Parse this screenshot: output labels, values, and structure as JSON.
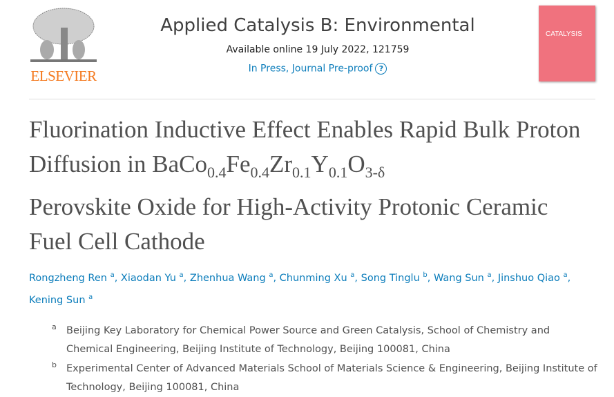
{
  "publisher": {
    "logo_text": "ELSEVIER",
    "brand_color": "#f47a20"
  },
  "journal": {
    "title": "Applied Catalysis B: Environmental",
    "available": "Available online 19 July 2022, 121759",
    "status": "In Press, Journal Pre-proof",
    "help_icon": "question-circle-icon",
    "cover_text": "CATALYSIS"
  },
  "article": {
    "title_parts": [
      "Fluorination Inductive Effect Enables Rapid Bulk Proton Diffusion in BaCo",
      "0.4",
      "Fe",
      "0.4",
      "Zr",
      "0.1",
      "Y",
      "0.1",
      "O",
      "3-δ",
      "Perovskite Oxide for High-Activity Protonic Ceramic Fuel Cell Cathode"
    ]
  },
  "authors": [
    {
      "name": "Rongzheng Ren",
      "aff": "a"
    },
    {
      "name": "Xiaodan Yu",
      "aff": "a"
    },
    {
      "name": "Zhenhua Wang",
      "aff": "a"
    },
    {
      "name": "Chunming Xu",
      "aff": "a"
    },
    {
      "name": "Song Tinglu",
      "aff": "b"
    },
    {
      "name": "Wang Sun",
      "aff": "a"
    },
    {
      "name": "Jinshuo Qiao",
      "aff": "a"
    },
    {
      "name": "Kening Sun",
      "aff": "a"
    }
  ],
  "affiliations": [
    {
      "label": "a",
      "text": "Beijing Key Laboratory for Chemical Power Source and Green Catalysis, School of Chemistry and Chemical Engineering, Beijing Institute of Technology, Beijing 100081, China"
    },
    {
      "label": "b",
      "text": "Experimental Center of Advanced Materials School of Materials Science & Engineering, Beijing Institute of Technology, Beijing 100081, China"
    }
  ],
  "link_color": "#0c7dbb"
}
